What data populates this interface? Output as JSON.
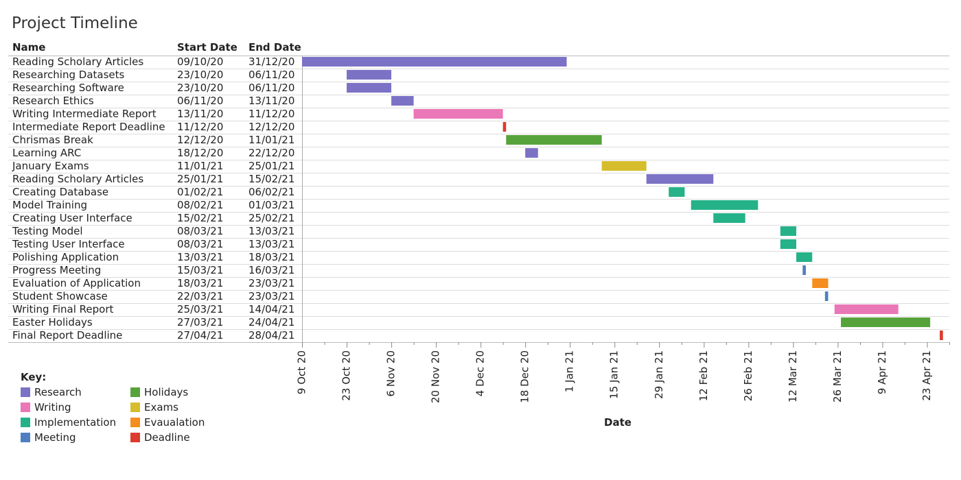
{
  "page": {
    "title": "Project Timeline"
  },
  "headers": {
    "name": "Name",
    "start": "Start Date",
    "end": "End Date"
  },
  "categories": {
    "Research": "#7b72c6",
    "Writing": "#ea77b6",
    "Implementation": "#25b289",
    "Meeting": "#4f7fc1",
    "Holidays": "#57a33b",
    "Exams": "#d5bd2c",
    "Evaualation": "#f58e1e",
    "Deadline": "#dc3b2d"
  },
  "legend": {
    "title": "Key:",
    "items": [
      {
        "label": "Research",
        "color": "#7b72c6"
      },
      {
        "label": "Holidays",
        "color": "#57a33b"
      },
      {
        "label": "Writing",
        "color": "#ea77b6"
      },
      {
        "label": "Exams",
        "color": "#d5bd2c"
      },
      {
        "label": "Implementation",
        "color": "#25b289"
      },
      {
        "label": "Evaualation",
        "color": "#f58e1e"
      },
      {
        "label": "Meeting",
        "color": "#4f7fc1"
      },
      {
        "label": "Deadline",
        "color": "#dc3b2d"
      }
    ]
  },
  "chart_data": {
    "type": "gantt",
    "xlabel": "Date",
    "xlim": [
      "2020-10-09",
      "2021-04-30"
    ],
    "x_ticks": [
      {
        "date": "2020-10-09",
        "label": "9 Oct 20"
      },
      {
        "date": "2020-10-23",
        "label": "23 Oct 20"
      },
      {
        "date": "2020-11-06",
        "label": "6 Nov 20"
      },
      {
        "date": "2020-11-20",
        "label": "20 Nov 20"
      },
      {
        "date": "2020-12-04",
        "label": "4 Dec 20"
      },
      {
        "date": "2020-12-18",
        "label": "18 Dec 20"
      },
      {
        "date": "2021-01-01",
        "label": "1 Jan 21"
      },
      {
        "date": "2021-01-15",
        "label": "15 Jan 21"
      },
      {
        "date": "2021-01-29",
        "label": "29 Jan 21"
      },
      {
        "date": "2021-02-12",
        "label": "12 Feb 21"
      },
      {
        "date": "2021-02-26",
        "label": "26 Feb 21"
      },
      {
        "date": "2021-03-12",
        "label": "12 Mar 21"
      },
      {
        "date": "2021-03-26",
        "label": "26 Mar 21"
      },
      {
        "date": "2021-04-09",
        "label": "9 Apr 21"
      },
      {
        "date": "2021-04-23",
        "label": "23 Apr 21"
      }
    ],
    "tasks": [
      {
        "name": "Reading Scholary Articles",
        "start_label": "09/10/20",
        "end_label": "31/12/20",
        "start": "2020-10-09",
        "end": "2020-12-31",
        "category": "Research"
      },
      {
        "name": "Researching Datasets",
        "start_label": "23/10/20",
        "end_label": "06/11/20",
        "start": "2020-10-23",
        "end": "2020-11-06",
        "category": "Research"
      },
      {
        "name": "Researching Software",
        "start_label": "23/10/20",
        "end_label": "06/11/20",
        "start": "2020-10-23",
        "end": "2020-11-06",
        "category": "Research"
      },
      {
        "name": "Research Ethics",
        "start_label": "06/11/20",
        "end_label": "13/11/20",
        "start": "2020-11-06",
        "end": "2020-11-13",
        "category": "Research"
      },
      {
        "name": "Writing Intermediate Report",
        "start_label": "13/11/20",
        "end_label": "11/12/20",
        "start": "2020-11-13",
        "end": "2020-12-11",
        "category": "Writing"
      },
      {
        "name": "Intermediate Report Deadline",
        "start_label": "11/12/20",
        "end_label": "12/12/20",
        "start": "2020-12-11",
        "end": "2020-12-12",
        "category": "Deadline"
      },
      {
        "name": "Chrismas Break",
        "start_label": "12/12/20",
        "end_label": "11/01/21",
        "start": "2020-12-12",
        "end": "2021-01-11",
        "category": "Holidays"
      },
      {
        "name": "Learning ARC",
        "start_label": "18/12/20",
        "end_label": "22/12/20",
        "start": "2020-12-18",
        "end": "2020-12-22",
        "category": "Research"
      },
      {
        "name": "January Exams",
        "start_label": "11/01/21",
        "end_label": "25/01/21",
        "start": "2021-01-11",
        "end": "2021-01-25",
        "category": "Exams"
      },
      {
        "name": "Reading Scholary Articles",
        "start_label": "25/01/21",
        "end_label": "15/02/21",
        "start": "2021-01-25",
        "end": "2021-02-15",
        "category": "Research"
      },
      {
        "name": "Creating Database",
        "start_label": "01/02/21",
        "end_label": "06/02/21",
        "start": "2021-02-01",
        "end": "2021-02-06",
        "category": "Implementation"
      },
      {
        "name": "Model Training",
        "start_label": "08/02/21",
        "end_label": "01/03/21",
        "start": "2021-02-08",
        "end": "2021-03-01",
        "category": "Implementation"
      },
      {
        "name": "Creating User Interface",
        "start_label": "15/02/21",
        "end_label": "25/02/21",
        "start": "2021-02-15",
        "end": "2021-02-25",
        "category": "Implementation"
      },
      {
        "name": "Testing Model",
        "start_label": "08/03/21",
        "end_label": "13/03/21",
        "start": "2021-03-08",
        "end": "2021-03-13",
        "category": "Implementation"
      },
      {
        "name": "Testing User Interface",
        "start_label": "08/03/21",
        "end_label": "13/03/21",
        "start": "2021-03-08",
        "end": "2021-03-13",
        "category": "Implementation"
      },
      {
        "name": "Polishing Application",
        "start_label": "13/03/21",
        "end_label": "18/03/21",
        "start": "2021-03-13",
        "end": "2021-03-18",
        "category": "Implementation"
      },
      {
        "name": "Progress Meeting",
        "start_label": "15/03/21",
        "end_label": "16/03/21",
        "start": "2021-03-15",
        "end": "2021-03-16",
        "category": "Meeting"
      },
      {
        "name": "Evaluation of Application",
        "start_label": "18/03/21",
        "end_label": "23/03/21",
        "start": "2021-03-18",
        "end": "2021-03-23",
        "category": "Evaualation"
      },
      {
        "name": "Student Showcase",
        "start_label": "22/03/21",
        "end_label": "23/03/21",
        "start": "2021-03-22",
        "end": "2021-03-23",
        "category": "Meeting"
      },
      {
        "name": "Writing Final Report",
        "start_label": "25/03/21",
        "end_label": "14/04/21",
        "start": "2021-03-25",
        "end": "2021-04-14",
        "category": "Writing"
      },
      {
        "name": "Easter Holidays",
        "start_label": "27/03/21",
        "end_label": "24/04/21",
        "start": "2021-03-27",
        "end": "2021-04-24",
        "category": "Holidays"
      },
      {
        "name": "Final Report Deadline",
        "start_label": "27/04/21",
        "end_label": "28/04/21",
        "start": "2021-04-27",
        "end": "2021-04-28",
        "category": "Deadline"
      }
    ]
  }
}
